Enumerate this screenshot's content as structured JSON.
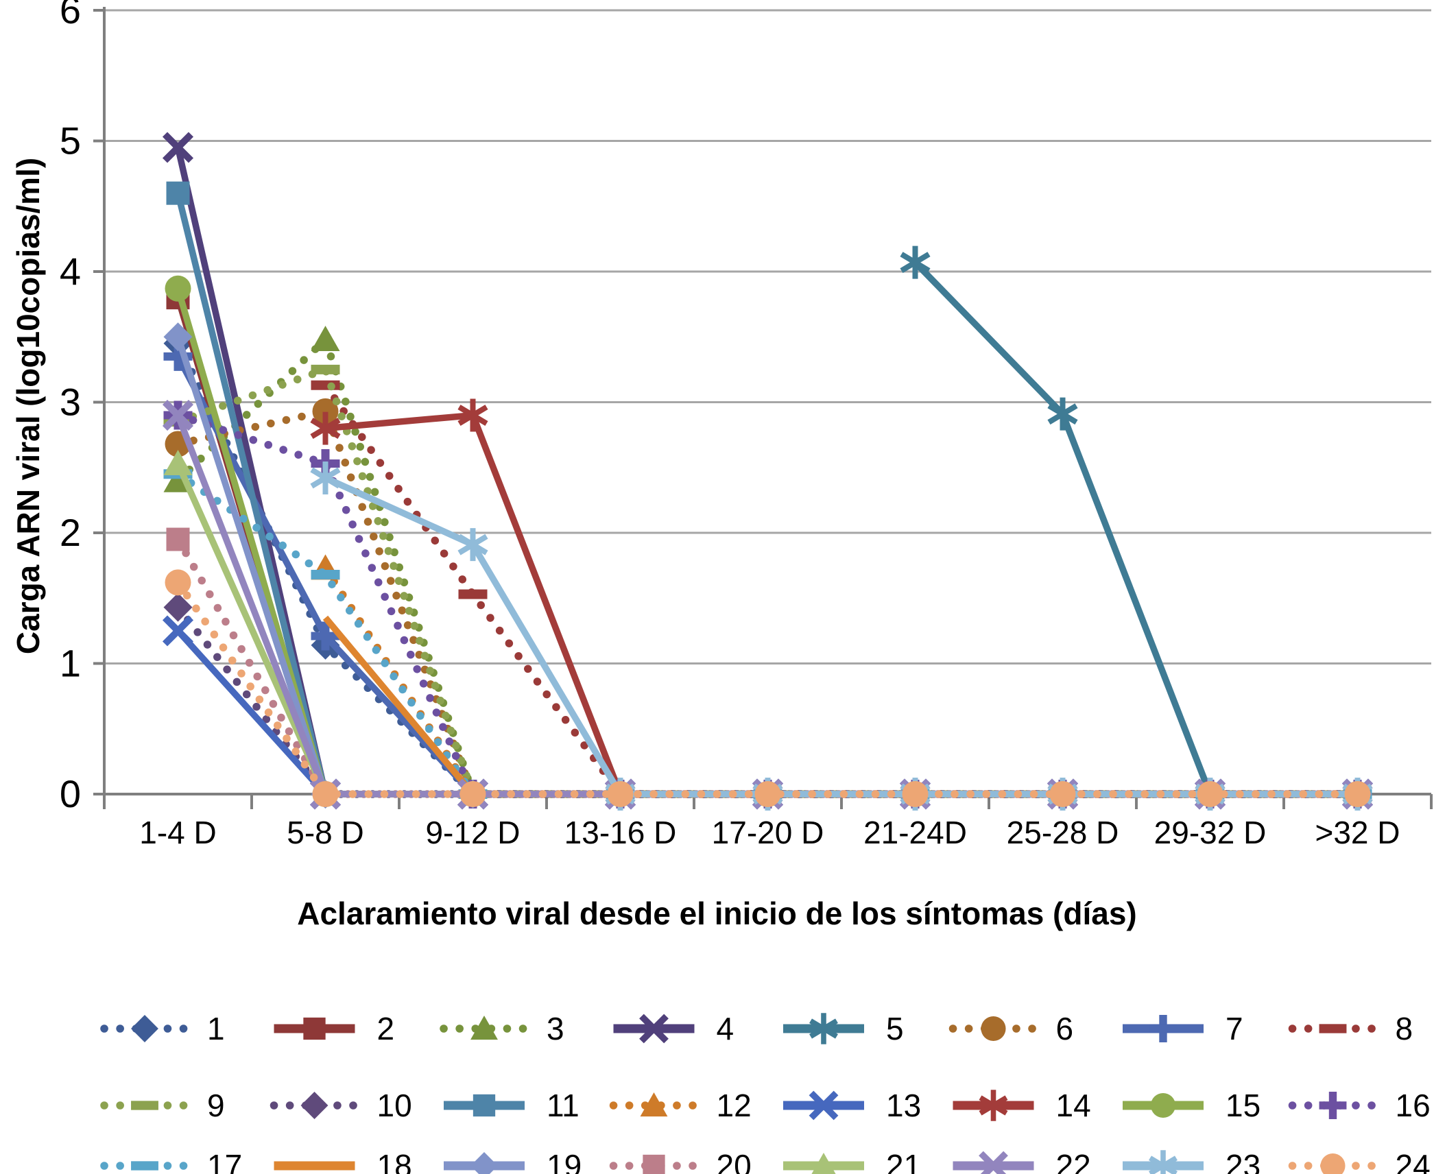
{
  "figure_title": "",
  "axes": {
    "x_title": "Aclaramiento viral desde el inicio de los síntomas (días)",
    "y_title": "Carga ARN viral (log10copias/ml)",
    "y_ticks": [
      "0",
      "1",
      "2",
      "3",
      "4",
      "5",
      "6"
    ],
    "x_tick_labels": [
      "1-4 D",
      "5-8 D",
      "9-12 D",
      "13-16 D",
      "17-20 D",
      "21-24D",
      "25-28 D",
      "29-32 D",
      ">32 D"
    ]
  },
  "chart_data": {
    "type": "line",
    "title": "",
    "xlabel": "Aclaramiento viral desde el inicio de los síntomas (días)",
    "ylabel": "Carga ARN viral (log10copias/ml)",
    "ylim": [
      0,
      6
    ],
    "grid": "horizontal",
    "legend_position": "bottom",
    "categories": [
      "1-4 D",
      "5-8 D",
      "9-12 D",
      "13-16 D",
      "17-20 D",
      "21-24D",
      "25-28 D",
      "29-32 D",
      ">32 D"
    ],
    "series": [
      {
        "name": "1",
        "color": "#3E5C96",
        "dashed": true,
        "marker": "diamond",
        "values": [
          3.45,
          1.14,
          0,
          0,
          0,
          0,
          0,
          0,
          0
        ]
      },
      {
        "name": "2",
        "color": "#8E3837",
        "dashed": false,
        "marker": "square",
        "values": [
          3.8,
          0,
          0,
          0,
          0,
          0,
          0,
          0,
          0
        ]
      },
      {
        "name": "3",
        "color": "#77933C",
        "dashed": true,
        "marker": "triangle",
        "values": [
          2.4,
          3.48,
          0,
          0,
          0,
          0,
          0,
          0,
          0
        ]
      },
      {
        "name": "4",
        "color": "#50407B",
        "dashed": false,
        "marker": "x",
        "values": [
          4.95,
          0,
          0,
          0,
          0,
          0,
          0,
          0,
          0
        ]
      },
      {
        "name": "5",
        "color": "#3F7B94",
        "dashed": false,
        "marker": "asterisk",
        "values": [
          null,
          null,
          null,
          null,
          null,
          4.07,
          2.91,
          0,
          0
        ]
      },
      {
        "name": "6",
        "color": "#A76C2B",
        "dashed": true,
        "marker": "circle",
        "values": [
          2.68,
          2.93,
          0,
          0,
          0,
          0,
          0,
          0,
          0
        ]
      },
      {
        "name": "7",
        "color": "#4D69B2",
        "dashed": false,
        "marker": "plus",
        "values": [
          3.35,
          1.21,
          0,
          0,
          0,
          0,
          0,
          0,
          0
        ]
      },
      {
        "name": "8",
        "color": "#9A3A38",
        "dashed": true,
        "marker": "dash",
        "values": [
          null,
          3.13,
          1.53,
          0,
          0,
          0,
          0,
          0,
          0
        ]
      },
      {
        "name": "9",
        "color": "#8CA24F",
        "dashed": true,
        "marker": "dash",
        "values": [
          2.85,
          3.25,
          0,
          0,
          0,
          0,
          0,
          0,
          0
        ]
      },
      {
        "name": "10",
        "color": "#5F4A7B",
        "dashed": true,
        "marker": "diamond",
        "values": [
          1.43,
          0,
          0,
          0,
          0,
          0,
          0,
          0,
          0
        ]
      },
      {
        "name": "11",
        "color": "#4E84A8",
        "dashed": false,
        "marker": "square",
        "values": [
          4.6,
          0,
          0,
          0,
          0,
          0,
          0,
          0,
          0
        ]
      },
      {
        "name": "12",
        "color": "#CE7B29",
        "dashed": true,
        "marker": "triangle",
        "values": [
          null,
          1.73,
          0,
          0,
          0,
          0,
          0,
          0,
          0
        ]
      },
      {
        "name": "13",
        "color": "#4668BE",
        "dashed": false,
        "marker": "x",
        "values": [
          1.25,
          0,
          0,
          0,
          0,
          0,
          0,
          0,
          0
        ]
      },
      {
        "name": "14",
        "color": "#A33C3A",
        "dashed": false,
        "marker": "asterisk",
        "values": [
          null,
          2.8,
          2.9,
          0,
          0,
          0,
          0,
          0,
          0
        ]
      },
      {
        "name": "15",
        "color": "#8FAC4E",
        "dashed": false,
        "marker": "circle",
        "values": [
          3.87,
          0,
          0,
          0,
          0,
          0,
          0,
          0,
          0
        ]
      },
      {
        "name": "16",
        "color": "#6C50A1",
        "dashed": true,
        "marker": "plus",
        "values": [
          2.9,
          2.53,
          0,
          0,
          0,
          0,
          0,
          0,
          0
        ]
      },
      {
        "name": "17",
        "color": "#58A5C9",
        "dashed": true,
        "marker": "dash",
        "values": [
          2.45,
          1.68,
          0,
          0,
          0,
          0,
          0,
          0,
          0
        ]
      },
      {
        "name": "18",
        "color": "#DE8530",
        "dashed": false,
        "marker": "none",
        "values": [
          null,
          1.35,
          0,
          0,
          0,
          0,
          0,
          0,
          0
        ]
      },
      {
        "name": "19",
        "color": "#8193C9",
        "dashed": false,
        "marker": "diamond",
        "values": [
          3.5,
          0,
          0,
          0,
          0,
          0,
          0,
          0,
          0
        ]
      },
      {
        "name": "20",
        "color": "#BC7E8A",
        "dashed": true,
        "marker": "square",
        "values": [
          1.95,
          0,
          0,
          0,
          0,
          0,
          0,
          0,
          0
        ]
      },
      {
        "name": "21",
        "color": "#A8C277",
        "dashed": false,
        "marker": "triangle",
        "values": [
          2.53,
          0,
          0,
          0,
          0,
          0,
          0,
          0,
          0
        ]
      },
      {
        "name": "22",
        "color": "#9285BE",
        "dashed": false,
        "marker": "x",
        "values": [
          2.9,
          0,
          0,
          0,
          0,
          0,
          0,
          0,
          0
        ]
      },
      {
        "name": "23",
        "color": "#90BBD9",
        "dashed": false,
        "marker": "asterisk",
        "values": [
          null,
          2.42,
          1.91,
          0,
          0,
          0,
          0,
          0,
          0
        ]
      },
      {
        "name": "24",
        "color": "#EDA674",
        "dashed": true,
        "marker": "circle",
        "values": [
          1.62,
          0,
          0,
          0,
          0,
          0,
          0,
          0,
          0
        ]
      }
    ]
  },
  "colors": {
    "gridline": "#A6A6A6",
    "axis": "#7F7F7F",
    "text": "#000000",
    "background": "#FFFFFF"
  }
}
